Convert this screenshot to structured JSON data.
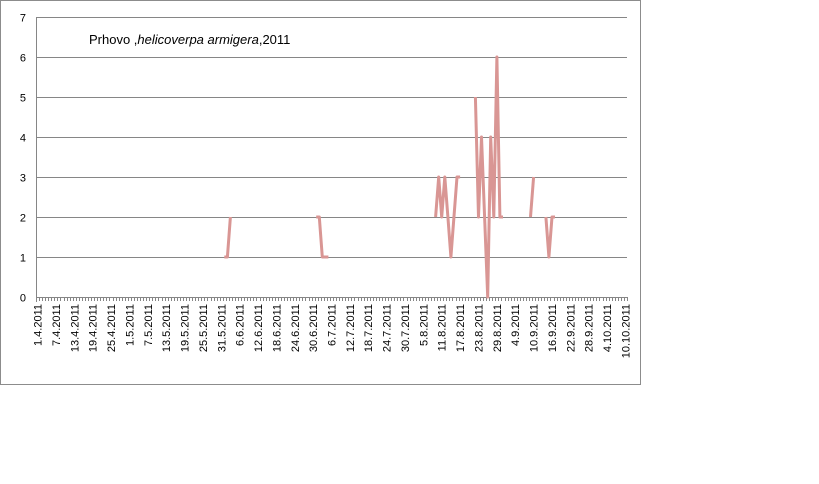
{
  "chart_data": {
    "type": "line",
    "title_parts": [
      "Prhovo ,",
      "helicoverpa armigera",
      ",2011"
    ],
    "xlabel": "",
    "ylabel": "",
    "ylim": [
      0,
      7
    ],
    "y_ticks": [
      "0",
      "1",
      "2",
      "3",
      "4",
      "5",
      "6",
      "7"
    ],
    "x_range": [
      "2011-04-01",
      "2011-10-10"
    ],
    "x_tick_labels": [
      "1.4.2011",
      "7.4.2011",
      "13.4.2011",
      "19.4.2011",
      "25.4.2011",
      "1.5.2011",
      "7.5.2011",
      "13.5.2011",
      "19.5.2011",
      "25.5.2011",
      "31.5.2011",
      "6.6.2011",
      "12.6.2011",
      "18.6.2011",
      "24.6.2011",
      "30.6.2011",
      "6.7.2011",
      "12.7.2011",
      "18.7.2011",
      "24.7.2011",
      "30.7.2011",
      "5.8.2011",
      "11.8.2011",
      "17.8.2011",
      "23.8.2011",
      "29.8.2011",
      "4.9.2011",
      "10.9.2011",
      "16.9.2011",
      "22.9.2011",
      "28.9.2011",
      "4.10.2011",
      "10.10.2011"
    ],
    "x_tick_dates": [
      "2011-04-01",
      "2011-04-07",
      "2011-04-13",
      "2011-04-19",
      "2011-04-25",
      "2011-05-01",
      "2011-05-07",
      "2011-05-13",
      "2011-05-19",
      "2011-05-25",
      "2011-05-31",
      "2011-06-06",
      "2011-06-12",
      "2011-06-18",
      "2011-06-24",
      "2011-06-30",
      "2011-07-06",
      "2011-07-12",
      "2011-07-18",
      "2011-07-24",
      "2011-07-30",
      "2011-08-05",
      "2011-08-11",
      "2011-08-17",
      "2011-08-23",
      "2011-08-29",
      "2011-09-04",
      "2011-09-10",
      "2011-09-16",
      "2011-09-22",
      "2011-09-28",
      "2011-10-04",
      "2011-10-10"
    ],
    "grid": true,
    "line_color": "#d99694",
    "segments": [
      [
        [
          "2011-06-01",
          1
        ],
        [
          "2011-06-02",
          1
        ],
        [
          "2011-06-03",
          2
        ]
      ],
      [
        [
          "2011-07-01",
          2
        ],
        [
          "2011-07-02",
          2
        ],
        [
          "2011-07-03",
          1
        ],
        [
          "2011-07-04",
          1
        ],
        [
          "2011-07-05",
          1
        ]
      ],
      [
        [
          "2011-08-09",
          2
        ],
        [
          "2011-08-10",
          3
        ],
        [
          "2011-08-11",
          2
        ],
        [
          "2011-08-12",
          3
        ],
        [
          "2011-08-13",
          2
        ],
        [
          "2011-08-14",
          1
        ],
        [
          "2011-08-16",
          3
        ],
        [
          "2011-08-17",
          3
        ]
      ],
      [
        [
          "2011-08-22",
          5
        ],
        [
          "2011-08-23",
          2
        ],
        [
          "2011-08-24",
          4
        ],
        [
          "2011-08-25",
          2
        ],
        [
          "2011-08-26",
          0
        ],
        [
          "2011-08-27",
          4
        ],
        [
          "2011-08-28",
          2
        ],
        [
          "2011-08-29",
          6
        ],
        [
          "2011-08-30",
          2
        ],
        [
          "2011-08-31",
          2
        ]
      ],
      [
        [
          "2011-09-09",
          2
        ],
        [
          "2011-09-10",
          3
        ]
      ],
      [
        [
          "2011-09-14",
          2
        ],
        [
          "2011-09-15",
          1
        ],
        [
          "2011-09-16",
          2
        ],
        [
          "2011-09-17",
          2
        ]
      ]
    ]
  }
}
